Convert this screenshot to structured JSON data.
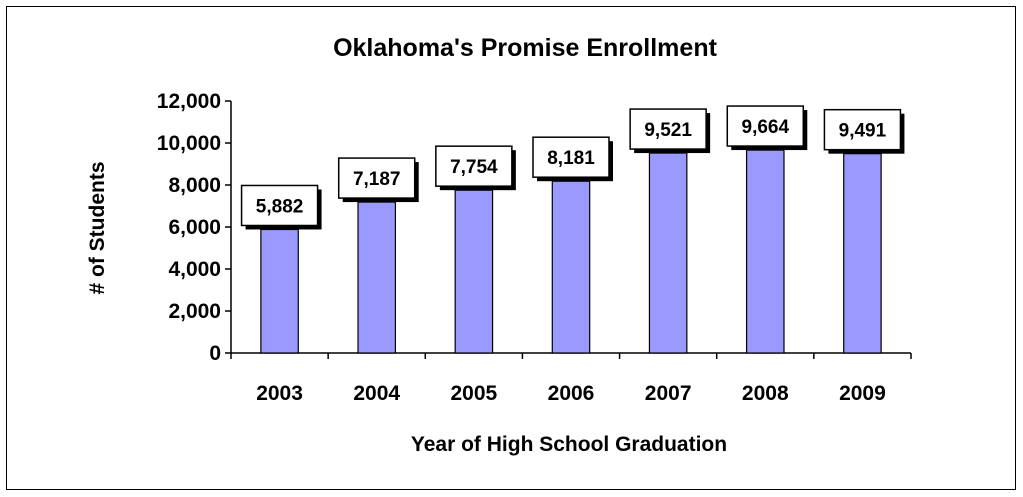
{
  "chart_data": {
    "type": "bar",
    "title": "Oklahoma's Promise Enrollment",
    "xlabel": "Year of High School Graduation",
    "ylabel": "# of Students",
    "categories": [
      "2003",
      "2004",
      "2005",
      "2006",
      "2007",
      "2008",
      "2009"
    ],
    "values": [
      5882,
      7187,
      7754,
      8181,
      9521,
      9664,
      9491
    ],
    "data_labels": [
      "5,882",
      "7,187",
      "7,754",
      "8,181",
      "9,521",
      "9,664",
      "9,491"
    ],
    "ylim": [
      0,
      12000
    ],
    "yticks": [
      0,
      2000,
      4000,
      6000,
      8000,
      10000,
      12000
    ],
    "ytick_labels": [
      "0",
      "2,000",
      "4,000",
      "6,000",
      "8,000",
      "10,000",
      "12,000"
    ],
    "grid": false,
    "legend": "none",
    "colors": {
      "bar_fill": "#9999ff",
      "bar_stroke": "#000000"
    }
  }
}
